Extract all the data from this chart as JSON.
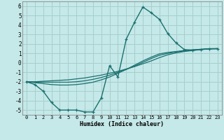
{
  "xlabel": "Humidex (Indice chaleur)",
  "background_color": "#c5e8e8",
  "grid_color": "#a8cece",
  "line_color": "#1a7070",
  "xlim": [
    -0.5,
    23.5
  ],
  "ylim": [
    -5.5,
    6.5
  ],
  "xticks": [
    0,
    1,
    2,
    3,
    4,
    5,
    6,
    7,
    8,
    9,
    10,
    11,
    12,
    13,
    14,
    15,
    16,
    17,
    18,
    19,
    20,
    21,
    22,
    23
  ],
  "yticks": [
    -5,
    -4,
    -3,
    -2,
    -1,
    0,
    1,
    2,
    3,
    4,
    5,
    6
  ],
  "main_x": [
    0,
    1,
    2,
    3,
    4,
    5,
    6,
    7,
    8,
    9,
    10,
    11,
    12,
    13,
    14,
    15,
    16,
    17,
    18,
    19,
    20,
    21,
    22,
    23
  ],
  "main_y": [
    -2.0,
    -2.3,
    -3.0,
    -4.2,
    -5.0,
    -5.0,
    -5.0,
    -5.2,
    -5.2,
    -3.7,
    -0.3,
    -1.5,
    2.5,
    4.3,
    5.9,
    5.3,
    4.6,
    3.1,
    2.1,
    1.4,
    1.35,
    1.4,
    1.5,
    1.5
  ],
  "lin1_x": [
    0,
    1,
    2,
    3,
    4,
    5,
    6,
    7,
    8,
    9,
    10,
    11,
    12,
    13,
    14,
    15,
    16,
    17,
    18,
    19,
    20,
    21,
    22,
    23
  ],
  "lin1_y": [
    -2.0,
    -2.0,
    -1.95,
    -1.9,
    -1.85,
    -1.8,
    -1.7,
    -1.6,
    -1.45,
    -1.3,
    -1.1,
    -0.9,
    -0.65,
    -0.4,
    -0.1,
    0.2,
    0.55,
    0.85,
    1.05,
    1.2,
    1.3,
    1.4,
    1.47,
    1.5
  ],
  "lin2_x": [
    0,
    1,
    2,
    3,
    4,
    5,
    6,
    7,
    8,
    9,
    10,
    11,
    12,
    13,
    14,
    15,
    16,
    17,
    18,
    19,
    20,
    21,
    22,
    23
  ],
  "lin2_y": [
    -2.0,
    -2.05,
    -2.05,
    -2.05,
    -2.05,
    -2.05,
    -2.0,
    -1.9,
    -1.75,
    -1.55,
    -1.3,
    -1.0,
    -0.7,
    -0.35,
    0.05,
    0.45,
    0.8,
    1.0,
    1.15,
    1.25,
    1.35,
    1.42,
    1.48,
    1.5
  ],
  "lin3_x": [
    0,
    1,
    2,
    3,
    4,
    5,
    6,
    7,
    8,
    9,
    10,
    11,
    12,
    13,
    14,
    15,
    16,
    17,
    18,
    19,
    20,
    21,
    22,
    23
  ],
  "lin3_y": [
    -2.0,
    -2.1,
    -2.2,
    -2.3,
    -2.35,
    -2.35,
    -2.3,
    -2.2,
    -2.05,
    -1.8,
    -1.5,
    -1.1,
    -0.7,
    -0.25,
    0.2,
    0.6,
    0.95,
    1.1,
    1.2,
    1.3,
    1.38,
    1.44,
    1.49,
    1.5
  ]
}
